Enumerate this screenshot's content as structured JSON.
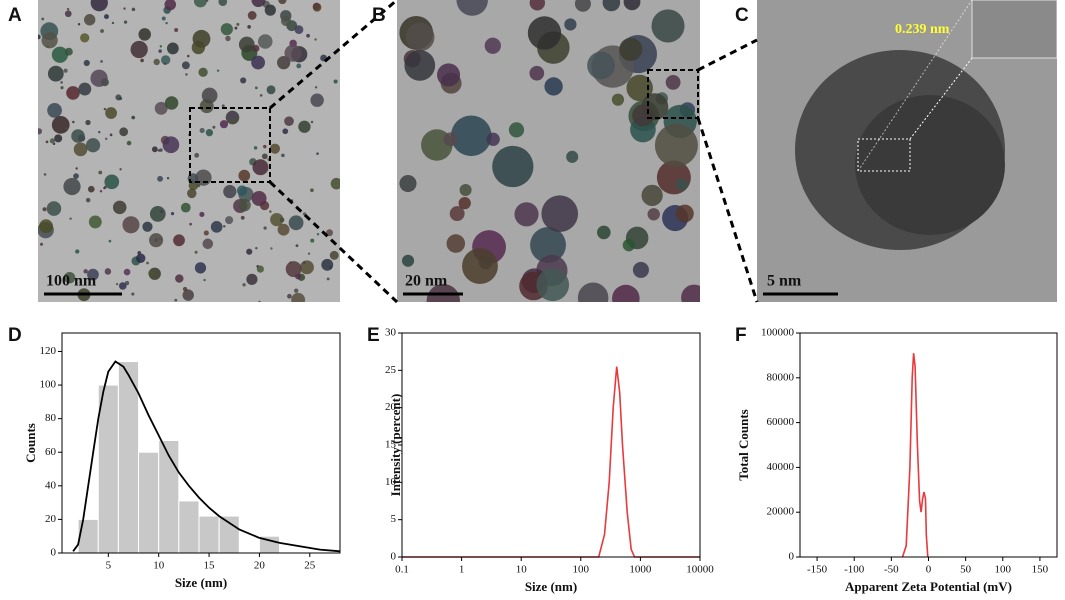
{
  "images": [
    {
      "label": "A",
      "scale_bar": "100 nm"
    },
    {
      "label": "B",
      "scale_bar": "20 nm"
    },
    {
      "label": "C",
      "scale_bar": "5 nm",
      "annotation": "0.239 nm"
    }
  ],
  "chart_data": [
    {
      "type": "histogram",
      "label": "D",
      "xlabel": "Size (nm)",
      "ylabel": "Counts",
      "bins": [
        2,
        4,
        6,
        8,
        10,
        12,
        14,
        16,
        18,
        20,
        22
      ],
      "counts": [
        20,
        100,
        114,
        60,
        67,
        31,
        22,
        22,
        0,
        10
      ],
      "color": "#c8c8c8",
      "fit": {
        "x": [
          1.5,
          2,
          2.5,
          3,
          3.5,
          4,
          4.5,
          5,
          5.7,
          6.5,
          7,
          8,
          9,
          10,
          11,
          12,
          13,
          14,
          15,
          16,
          18,
          20,
          22,
          24,
          26,
          28
        ],
        "y": [
          1,
          5,
          20,
          40,
          60,
          80,
          96,
          108,
          114,
          111,
          106,
          95,
          82,
          70,
          58,
          48,
          40,
          33,
          27,
          22,
          14,
          9,
          6,
          4,
          2,
          1
        ],
        "color": "#000000"
      },
      "xlim": [
        0.4,
        28
      ],
      "xticks": [
        5,
        10,
        15,
        20,
        25
      ],
      "ylim": [
        0,
        131
      ],
      "yticks": [
        0,
        20,
        40,
        60,
        80,
        100,
        120
      ]
    },
    {
      "type": "line",
      "label": "E",
      "xlabel": "Size (nm)",
      "ylabel": "Intensity (percent)",
      "xscale": "log",
      "x": [
        0.1,
        200,
        250,
        300,
        350,
        400,
        450,
        500,
        600,
        700,
        800,
        10000
      ],
      "values": [
        0,
        0,
        3,
        10,
        20,
        25.5,
        22,
        15,
        6,
        1,
        0,
        0
      ],
      "color": "#e8393c",
      "xlim": [
        0.1,
        10000
      ],
      "xticks": [
        0.1,
        1,
        10,
        100,
        1000,
        10000
      ],
      "ylim": [
        0,
        30
      ],
      "yticks": [
        0,
        5,
        10,
        15,
        20,
        25,
        30
      ]
    },
    {
      "type": "line",
      "label": "F",
      "xlabel": "Apparent Zeta Potential (mV)",
      "ylabel": "Total Counts",
      "x": [
        -35,
        -30,
        -25,
        -22,
        -20,
        -18,
        -15,
        -12,
        -10,
        -8,
        -6,
        -4,
        -3,
        -1
      ],
      "values": [
        0,
        5000,
        40000,
        80000,
        91000,
        85000,
        50000,
        25000,
        20000,
        26000,
        29000,
        26000,
        10000,
        0
      ],
      "color": "#e8393c",
      "xlim": [
        -173,
        173
      ],
      "xticks": [
        -150,
        -100,
        -50,
        0,
        50,
        100,
        150
      ],
      "ylim": [
        0,
        100000
      ],
      "yticks": [
        0,
        20000,
        40000,
        60000,
        80000,
        100000
      ]
    }
  ]
}
